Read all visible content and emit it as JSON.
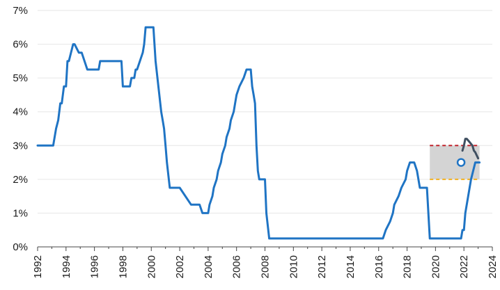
{
  "chart_data": {
    "type": "line",
    "title": "",
    "xlabel": "",
    "ylabel": "",
    "xlim": [
      1992,
      2024
    ],
    "ylim": [
      0,
      7
    ],
    "grid": true,
    "x_tick_labels": [
      "1992",
      "1994",
      "1996",
      "1998",
      "2000",
      "2002",
      "2004",
      "2006",
      "2008",
      "2010",
      "2012",
      "2014",
      "2016",
      "2018",
      "2020",
      "2022",
      "2024"
    ],
    "y_tick_labels": [
      "0%",
      "1%",
      "2%",
      "3%",
      "4%",
      "5%",
      "6%",
      "7%"
    ],
    "colors": {
      "main_line": "#1f74c4",
      "projection_line": "#3f4f60",
      "band_fill": "#d4d4d4",
      "band_upper": "#c0232c",
      "band_lower": "#f2b01e",
      "marker_fill": "#ffffff"
    },
    "band": {
      "x_start": 2019.6,
      "x_end": 2023.1,
      "lower": 2.0,
      "upper": 3.0
    },
    "marker": {
      "x": 2021.8,
      "y": 2.5
    },
    "series": [
      {
        "x": [
          1992,
          1993.1,
          1993.3,
          1993.45,
          1993.6,
          1993.7,
          1993.85,
          1994.0,
          1994.1,
          1994.2,
          1994.5,
          1994.6,
          1994.9,
          1995.1,
          1995.5,
          1996.0,
          1996.3,
          1996.4,
          1996.8,
          1997.8,
          1997.9,
          1998.0,
          1998.2,
          1998.5,
          1998.6,
          1998.8,
          1998.9,
          1999.0,
          1999.2,
          1999.4,
          1999.5,
          1999.6,
          2000.0,
          2000.15,
          2000.3,
          2000.7,
          2000.8,
          2000.9,
          2001.0,
          2001.1,
          2001.3,
          2001.5,
          2001.7,
          2002.0,
          2002.8,
          2003.4,
          2003.6,
          2003.7,
          2003.8,
          2004.0,
          2004.1,
          2004.3,
          2004.4,
          2004.6,
          2004.7,
          2004.9,
          2005.0,
          2005.2,
          2005.3,
          2005.5,
          2005.6,
          2005.8,
          2005.9,
          2006.0,
          2006.2,
          2006.5,
          2006.7,
          2007.0,
          2007.1,
          2007.2,
          2007.3,
          2007.4,
          2007.5,
          2007.6,
          2007.8,
          2008.0,
          2008.1,
          2008.3,
          2008.9,
          2012.0,
          2014.5,
          2015.2,
          2016.3,
          2016.5,
          2016.8,
          2017.0,
          2017.1,
          2017.4,
          2017.6,
          2017.9,
          2018.0,
          2018.2,
          2018.5,
          2018.7,
          2018.9,
          2019.1,
          2019.3,
          2019.4,
          2019.6,
          2019.8,
          2021.8,
          2021.9,
          2022.0,
          2022.1,
          2022.3,
          2022.5,
          2022.8,
          2023.0,
          2023.1
        ],
        "y": [
          3.0,
          3.0,
          3.5,
          3.75,
          4.25,
          4.25,
          4.75,
          4.75,
          5.5,
          5.5,
          6.0,
          6.0,
          5.75,
          5.75,
          5.25,
          5.25,
          5.25,
          5.5,
          5.5,
          5.5,
          5.5,
          4.75,
          4.75,
          4.75,
          5.0,
          5.0,
          5.25,
          5.25,
          5.5,
          5.75,
          6.0,
          6.5,
          6.5,
          6.5,
          5.5,
          4.0,
          3.75,
          3.5,
          3.0,
          2.5,
          1.75,
          1.75,
          1.75,
          1.75,
          1.25,
          1.25,
          1.0,
          1.0,
          1.0,
          1.0,
          1.25,
          1.5,
          1.75,
          2.0,
          2.25,
          2.5,
          2.75,
          3.0,
          3.25,
          3.5,
          3.75,
          4.0,
          4.25,
          4.5,
          4.75,
          5.0,
          5.25,
          5.25,
          4.75,
          4.5,
          4.25,
          3.0,
          2.25,
          2.0,
          2.0,
          2.0,
          1.0,
          0.25,
          0.25,
          0.25,
          0.25,
          0.25,
          0.25,
          0.5,
          0.75,
          1.0,
          1.25,
          1.5,
          1.75,
          2.0,
          2.25,
          2.5,
          2.5,
          2.25,
          1.75,
          1.75,
          1.75,
          1.75,
          0.25,
          0.25,
          0.25,
          0.5,
          0.5,
          1.0,
          1.5,
          2.0,
          2.5,
          2.5,
          2.5
        ],
        "marker": true
      },
      {
        "x": [
          2021.9,
          2022.0,
          2022.1,
          2022.2,
          2022.4,
          2022.6,
          2022.7,
          2022.8,
          2023.0
        ],
        "y": [
          2.85,
          3.0,
          3.2,
          3.2,
          3.1,
          3.0,
          2.85,
          2.8,
          2.62
        ]
      }
    ]
  }
}
